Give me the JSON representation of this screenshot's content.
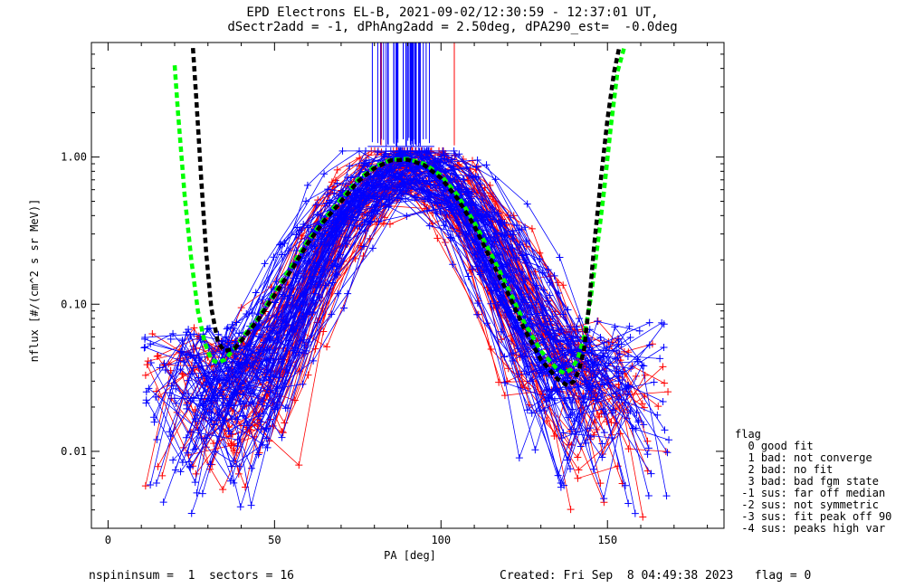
{
  "chart_data": {
    "type": "line",
    "title": "EPD Electrons EL-B, 2021-09-02/12:30:59 - 12:37:01 UT,",
    "subtitle": "dSectr2add = -1, dPhAng2add = 2.50deg, dPA290_est=  -0.0deg",
    "xlabel": "PA [deg]",
    "ylabel": "nflux [#/(cm^2 s sr MeV)]",
    "xlim": [
      -5,
      185
    ],
    "ylim": [
      0.003,
      6
    ],
    "yscale": "log",
    "x_ticks": [
      {
        "v": 0,
        "label": "0"
      },
      {
        "v": 50,
        "label": "50"
      },
      {
        "v": 100,
        "label": "100"
      },
      {
        "v": 150,
        "label": "150"
      }
    ],
    "y_ticks": [
      {
        "v": 0.01,
        "label": "0.01"
      },
      {
        "v": 0.1,
        "label": "0.10"
      },
      {
        "v": 1.0,
        "label": "1.00"
      }
    ],
    "colors": {
      "measured_blue": "#0000ff",
      "measured_red": "#ff0000",
      "fit_green": "#00ff00",
      "fit_black": "#000000",
      "axes": "#000000"
    },
    "series": [
      {
        "style": "dashed-thick",
        "color": "#00ff00",
        "x": [
          20,
          21,
          23,
          25,
          27,
          29,
          31,
          33,
          35,
          38,
          41,
          45,
          50,
          55,
          60,
          65,
          70,
          75,
          80,
          85,
          90,
          95,
          100,
          105,
          110,
          115,
          120,
          125,
          130,
          135,
          137,
          139,
          141,
          143,
          145,
          147,
          149,
          151,
          153,
          155
        ],
        "y": [
          4.2,
          2.0,
          0.55,
          0.2,
          0.09,
          0.055,
          0.042,
          0.04,
          0.042,
          0.05,
          0.062,
          0.08,
          0.12,
          0.18,
          0.27,
          0.38,
          0.52,
          0.7,
          0.86,
          0.96,
          0.97,
          0.9,
          0.75,
          0.55,
          0.36,
          0.22,
          0.13,
          0.075,
          0.048,
          0.036,
          0.034,
          0.036,
          0.042,
          0.06,
          0.11,
          0.25,
          0.6,
          1.6,
          3.8,
          5.5
        ]
      },
      {
        "style": "dashed-thick",
        "color": "#000000",
        "x": [
          25.5,
          26.5,
          28,
          29.5,
          31,
          33,
          35,
          38,
          41,
          45,
          50,
          55,
          60,
          65,
          70,
          75,
          80,
          85,
          90,
          95,
          100,
          105,
          110,
          115,
          120,
          125,
          130,
          135,
          138,
          140,
          141.5,
          143,
          144.5,
          146,
          148,
          150,
          152,
          153.5
        ],
        "y": [
          5.5,
          2.5,
          0.7,
          0.22,
          0.095,
          0.055,
          0.048,
          0.05,
          0.06,
          0.078,
          0.115,
          0.17,
          0.26,
          0.37,
          0.5,
          0.68,
          0.84,
          0.95,
          0.96,
          0.88,
          0.72,
          0.52,
          0.34,
          0.2,
          0.12,
          0.068,
          0.042,
          0.031,
          0.028,
          0.03,
          0.036,
          0.05,
          0.1,
          0.25,
          0.7,
          1.8,
          3.8,
          5.5
        ]
      }
    ],
    "scatter_note": "",
    "measured": {
      "blue_traces": 90,
      "red_traces": 55,
      "peak_x": [
        80,
        100
      ],
      "peak_y": 0.95
    }
  },
  "legend": {
    "title": "flag",
    "items": [
      "  0 good fit",
      "  1 bad: not converge",
      "  2 bad: no fit",
      "  3 bad: bad fgm state",
      " -1 sus: far off median",
      " -2 sus: not symmetric",
      " -3 sus: fit peak off 90",
      " -4 sus: peaks high var"
    ]
  },
  "footer": {
    "left": "nspininsum =  1  sectors = 16",
    "right": "Created: Fri Sep  8 04:49:38 2023   flag = 0"
  }
}
